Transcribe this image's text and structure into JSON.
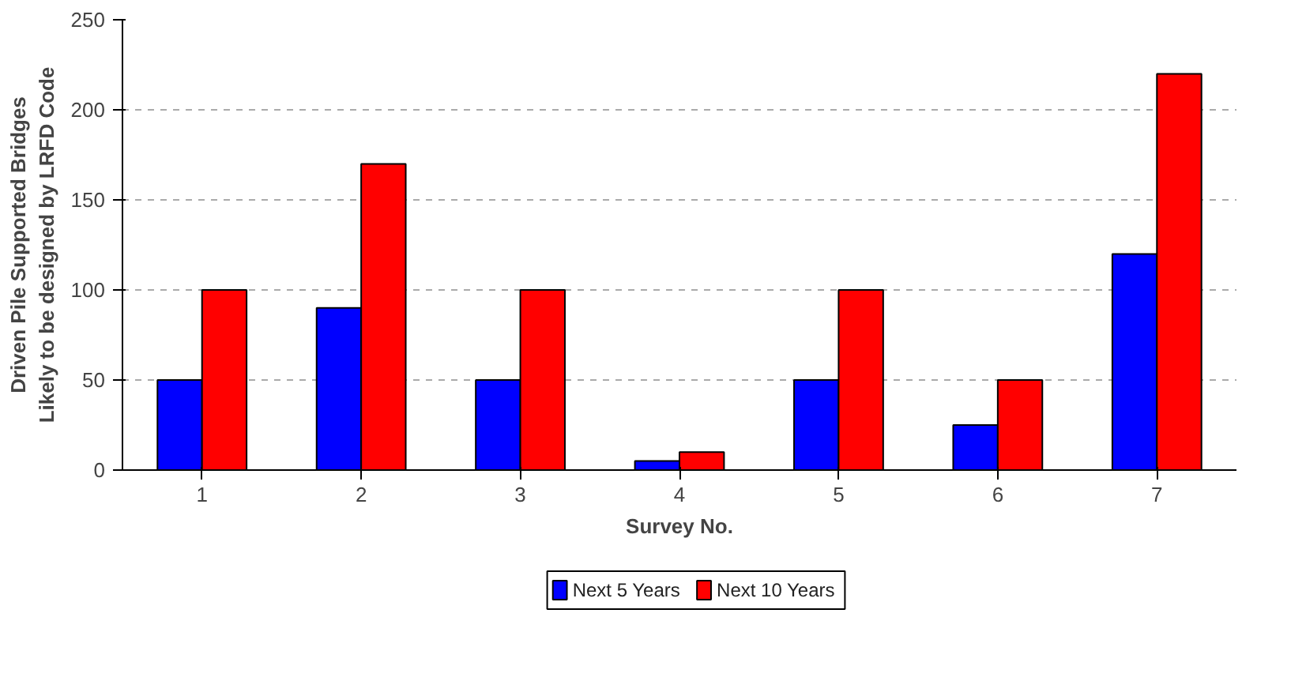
{
  "chart_data": {
    "type": "bar",
    "xlabel": "Survey No.",
    "ylabel": "Driven Pile Supported Bridges\nLikely to be designed by LRFD Code",
    "categories": [
      "1",
      "2",
      "3",
      "4",
      "5",
      "6",
      "7"
    ],
    "series": [
      {
        "name": "Next 5 Years",
        "color": "#0000ff",
        "values": [
          50,
          90,
          50,
          5,
          50,
          25,
          120
        ]
      },
      {
        "name": "Next 10 Years",
        "color": "#ff0000",
        "values": [
          100,
          170,
          100,
          10,
          100,
          50,
          220
        ]
      }
    ],
    "ylim": [
      0,
      250
    ],
    "yticks": [
      0,
      50,
      100,
      150,
      200,
      250
    ],
    "grid": "y",
    "legend": "bottom"
  }
}
